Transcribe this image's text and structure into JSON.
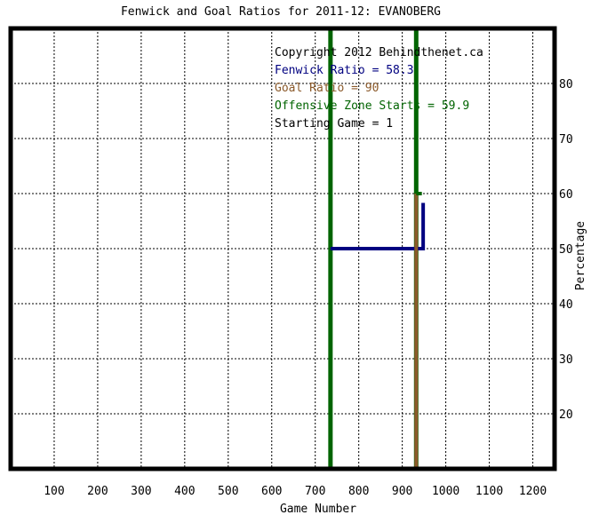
{
  "chart_data": {
    "type": "line",
    "title": "Fenwick and Goal Ratios for 2011-12: EVANOBERG",
    "xlabel": "Game Number",
    "ylabel": "Percentage",
    "xlim": [
      0,
      1250
    ],
    "ylim": [
      10,
      90
    ],
    "x_ticks": [
      100,
      200,
      300,
      400,
      500,
      600,
      700,
      800,
      900,
      1000,
      1100,
      1200
    ],
    "y_ticks": [
      20,
      30,
      40,
      50,
      60,
      70,
      80
    ],
    "grid": true,
    "legend_position": "top-right",
    "annotations": [
      {
        "text": "Copyright 2012 Behindthenet.ca",
        "color": "#000000"
      },
      {
        "text": "Fenwick Ratio = 58.3",
        "color": "#000080"
      },
      {
        "text": "Goal Ratio = 90",
        "color": "#8b5a2b"
      },
      {
        "text": "Offensive Zone Starts = 59.9",
        "color": "#006400"
      },
      {
        "text": "Starting Game = 1",
        "color": "#000000"
      }
    ],
    "series": [
      {
        "name": "Fenwick Ratio",
        "color": "#000080",
        "points": [
          [
            735,
            50
          ],
          [
            948,
            50
          ],
          [
            948,
            58.3
          ]
        ]
      },
      {
        "name": "Goal Ratio",
        "color": "#8b5a2b",
        "points": [
          [
            932,
            10
          ],
          [
            932,
            60
          ]
        ]
      },
      {
        "name": "Offensive Zone Starts",
        "color": "#006400",
        "points": [
          [
            932,
            60
          ],
          [
            945,
            60
          ]
        ]
      }
    ],
    "vertical_lines": [
      {
        "x": 735,
        "color": "#006400"
      },
      {
        "x": 932,
        "color": "#006400"
      }
    ]
  }
}
